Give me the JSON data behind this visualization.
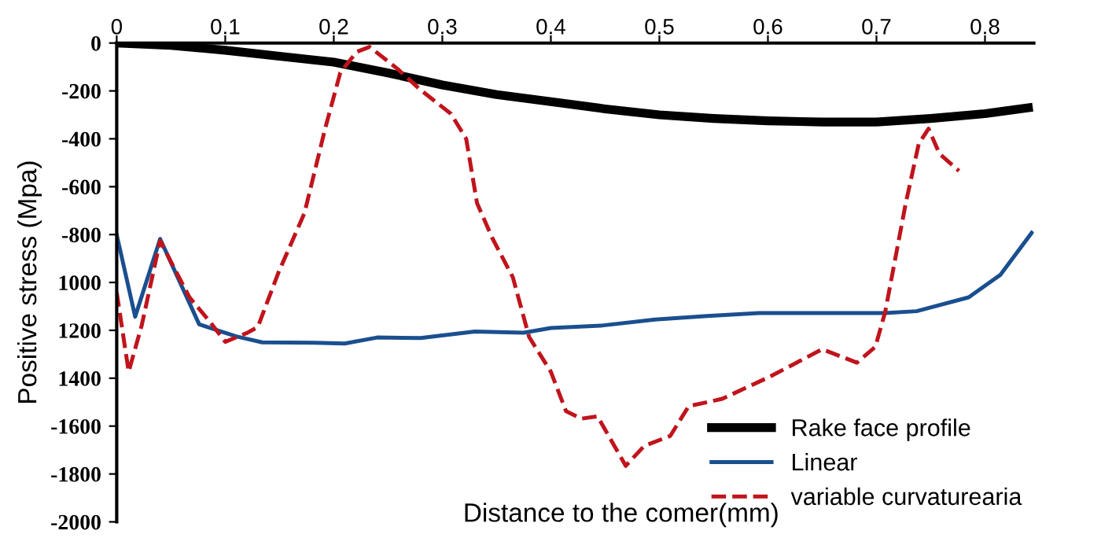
{
  "chart_data": {
    "type": "line",
    "xlabel": "Distance to the comer(mm)",
    "ylabel": "Positive stress (Mpa)",
    "xlim": [
      0,
      0.845
    ],
    "xticks": [
      0,
      0.1,
      0.2,
      0.3,
      0.4,
      0.5,
      0.6,
      0.7,
      0.8
    ],
    "ylim": [
      -2000,
      0
    ],
    "yticks": [
      0,
      -200,
      -400,
      -600,
      -800,
      {
        "value": -1000,
        "label": "1000"
      },
      {
        "value": -1200,
        "label": "1200"
      },
      {
        "value": -1400,
        "label": "1400"
      },
      -1600,
      -1800,
      -2000
    ],
    "grid": false,
    "legend": "bottom right",
    "marker": "none",
    "series": [
      {
        "name": "Rake face profile",
        "color": "#000000",
        "line_style": "solid",
        "x": [
          0,
          0.05,
          0.1,
          0.15,
          0.2,
          0.25,
          0.3,
          0.35,
          0.4,
          0.45,
          0.5,
          0.55,
          0.6,
          0.65,
          0.7,
          0.75,
          0.8,
          0.84
        ],
        "values": [
          0,
          -10,
          -30,
          -55,
          -80,
          -125,
          -175,
          -215,
          -245,
          -275,
          -300,
          -315,
          -325,
          -330,
          -330,
          -315,
          -295,
          -270
        ]
      },
      {
        "name": "Linear",
        "color": "#1a4f8f",
        "line_style": "solid",
        "x": [
          0,
          0.017,
          0.04,
          0.076,
          0.11,
          0.134,
          0.182,
          0.21,
          0.24,
          0.28,
          0.33,
          0.375,
          0.4,
          0.447,
          0.496,
          0.544,
          0.592,
          0.64,
          0.708,
          0.737,
          0.785,
          0.814,
          0.843
        ],
        "values": [
          -801,
          -1143,
          -818,
          -1175,
          -1225,
          -1250,
          -1252,
          -1255,
          -1230,
          -1232,
          -1205,
          -1210,
          -1190,
          -1180,
          -1155,
          -1140,
          -1128,
          -1128,
          -1128,
          -1120,
          -1062,
          -969,
          -793
        ]
      },
      {
        "name": "variable curvaturearia",
        "color": "#c0141c",
        "line_style": "dashed",
        "x": [
          0,
          0.011,
          0.023,
          0.04,
          0.067,
          0.086,
          0.1,
          0.12,
          0.13,
          0.149,
          0.173,
          0.192,
          0.206,
          0.221,
          0.233,
          0.259,
          0.279,
          0.308,
          0.322,
          0.332,
          0.346,
          0.365,
          0.38,
          0.4,
          0.414,
          0.428,
          0.443,
          0.469,
          0.486,
          0.51,
          0.527,
          0.558,
          0.602,
          0.65,
          0.682,
          0.699,
          0.708,
          0.727,
          0.739,
          0.748,
          0.758,
          0.776
        ],
        "values": [
          -1041,
          -1373,
          -1180,
          -826,
          -1062,
          -1165,
          -1248,
          -1211,
          -1186,
          -959,
          -710,
          -358,
          -124,
          -37,
          -16,
          -109,
          -192,
          -296,
          -400,
          -669,
          -814,
          -979,
          -1228,
          -1373,
          -1538,
          -1569,
          -1559,
          -1766,
          -1683,
          -1641,
          -1517,
          -1486,
          -1393,
          -1279,
          -1335,
          -1269,
          -1124,
          -669,
          -420,
          -358,
          -462,
          -534
        ]
      }
    ]
  }
}
